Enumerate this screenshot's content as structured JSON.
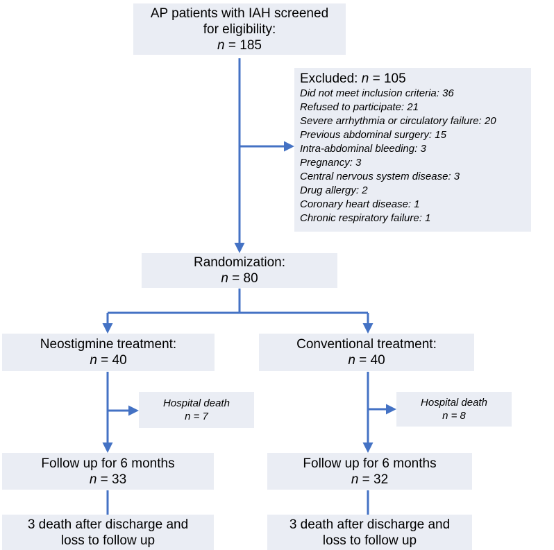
{
  "screening": {
    "line1": "AP patients with IAH screened",
    "line2": "for eligibility:",
    "n_label": "n",
    "n_value": "= 185"
  },
  "excluded": {
    "title": "Excluded: ",
    "n_label": "n",
    "n_value": "= 105",
    "items": [
      "Did not meet inclusion criteria: 36",
      "Refused to participate: 21",
      "Severe arrhythmia or circulatory failure: 20",
      "Previous abdominal surgery: 15",
      "Intra-abdominal bleeding: 3",
      "Pregnancy: 3",
      "Central nervous system disease: 3",
      "Drug allergy: 2",
      "Coronary heart disease: 1",
      "Chronic respiratory failure: 1"
    ]
  },
  "randomization": {
    "line1": "Randomization:",
    "n_label": "n",
    "n_value": "= 80"
  },
  "neostigmine": {
    "treatment": {
      "line1": "Neostigmine treatment:",
      "n_label": "n",
      "n_value": "= 40"
    },
    "hospital_death": {
      "line1": "Hospital death",
      "line2": "n = 7"
    },
    "follow_up": {
      "line1": "Follow up for 6 months",
      "n_label": "n",
      "n_value": "= 33"
    },
    "after_discharge": {
      "line1": "3 death after discharge and",
      "line2": "loss to follow up"
    }
  },
  "conventional": {
    "treatment": {
      "line1": "Conventional treatment:",
      "n_label": "n",
      "n_value": "= 40"
    },
    "hospital_death": {
      "line1": "Hospital death",
      "line2": "n = 8"
    },
    "follow_up": {
      "line1": "Follow up for 6 months",
      "n_label": "n",
      "n_value": "= 32"
    },
    "after_discharge": {
      "line1": "3 death after discharge and",
      "line2": "loss to follow up"
    }
  },
  "colors": {
    "box_fill": "#eaedf4",
    "arrow": "#4472c4"
  }
}
